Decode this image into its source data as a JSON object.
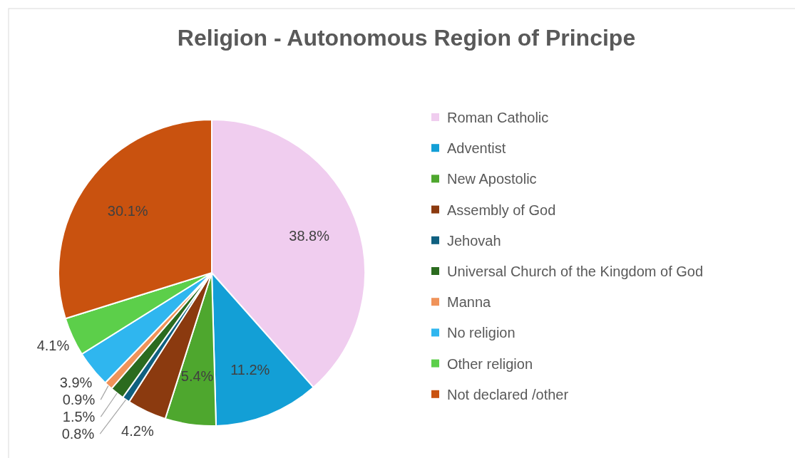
{
  "chart_data": {
    "type": "pie",
    "title": "Religion - Autonomous Region of Principe",
    "categories": [
      "Roman Catholic",
      "Adventist",
      "New Apostolic",
      "Assembly of God",
      "Jehovah",
      "Universal Church of the Kingdom of God",
      "Manna",
      "No religion",
      "Other religion",
      "Not declared /other"
    ],
    "values": [
      38.8,
      11.2,
      5.4,
      4.2,
      0.8,
      1.5,
      0.9,
      3.9,
      4.1,
      30.1
    ],
    "colors": [
      "#f0cdef",
      "#139fd6",
      "#4ea72e",
      "#8b3a0f",
      "#0f6080",
      "#2b6b1f",
      "#f0935a",
      "#2fb6ef",
      "#5ccf4a",
      "#c9520f"
    ],
    "value_labels": [
      "38.8%",
      "11.2%",
      "5.4%",
      "4.2%",
      "0.8%",
      "1.5%",
      "0.9%",
      "3.9%",
      "4.1%",
      "30.1%"
    ],
    "legend": "right"
  }
}
